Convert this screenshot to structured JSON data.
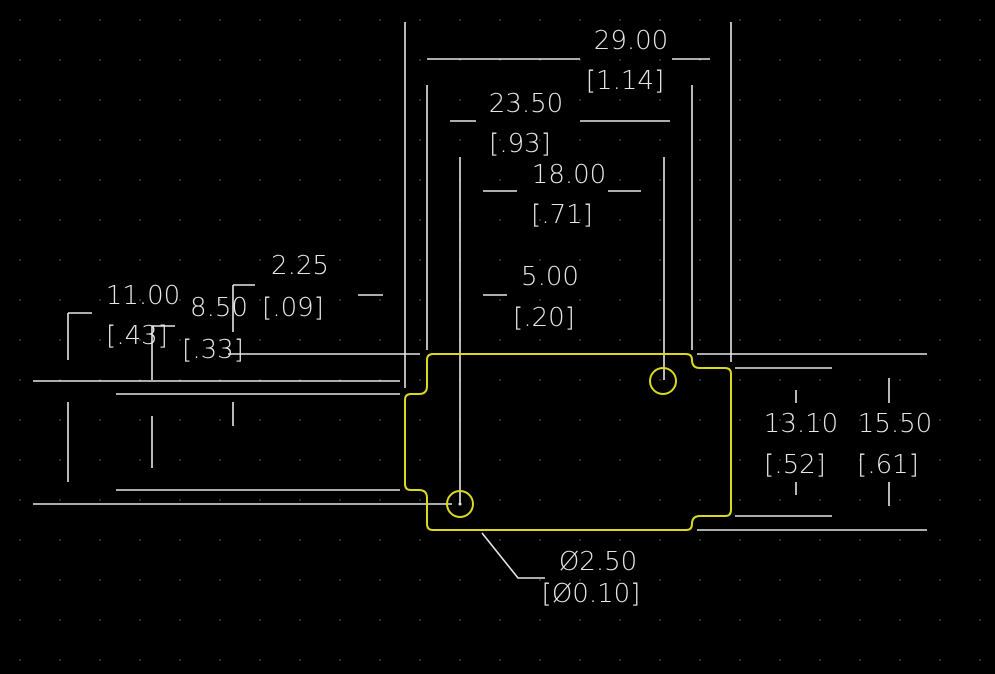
{
  "colors": {
    "background": "#000000",
    "dimension_line": "#e6e6e6",
    "outline": "#d9d920",
    "grid_dot": "#3a3a3a"
  },
  "dimensions": {
    "d29_00": {
      "value": "29.00",
      "inch": "[1.14]"
    },
    "d23_50": {
      "value": "23.50",
      "inch": "[.93]"
    },
    "d18_00": {
      "value": "18.00",
      "inch": "[.71]"
    },
    "d5_00": {
      "value": "5.00",
      "inch": "[.20]"
    },
    "d2_25": {
      "value": "2.25",
      "inch": "[.09]"
    },
    "d11_00": {
      "value": "11.00",
      "inch": "[.43]"
    },
    "d8_50": {
      "value": "8.50",
      "inch": "[.33]"
    },
    "d13_10": {
      "value": "13.10",
      "inch": "[.52]"
    },
    "d15_50": {
      "value": "15.50",
      "inch": "[.61]"
    },
    "hole": {
      "value": "Ø2.50",
      "inch": "[Ø0.10]"
    }
  }
}
